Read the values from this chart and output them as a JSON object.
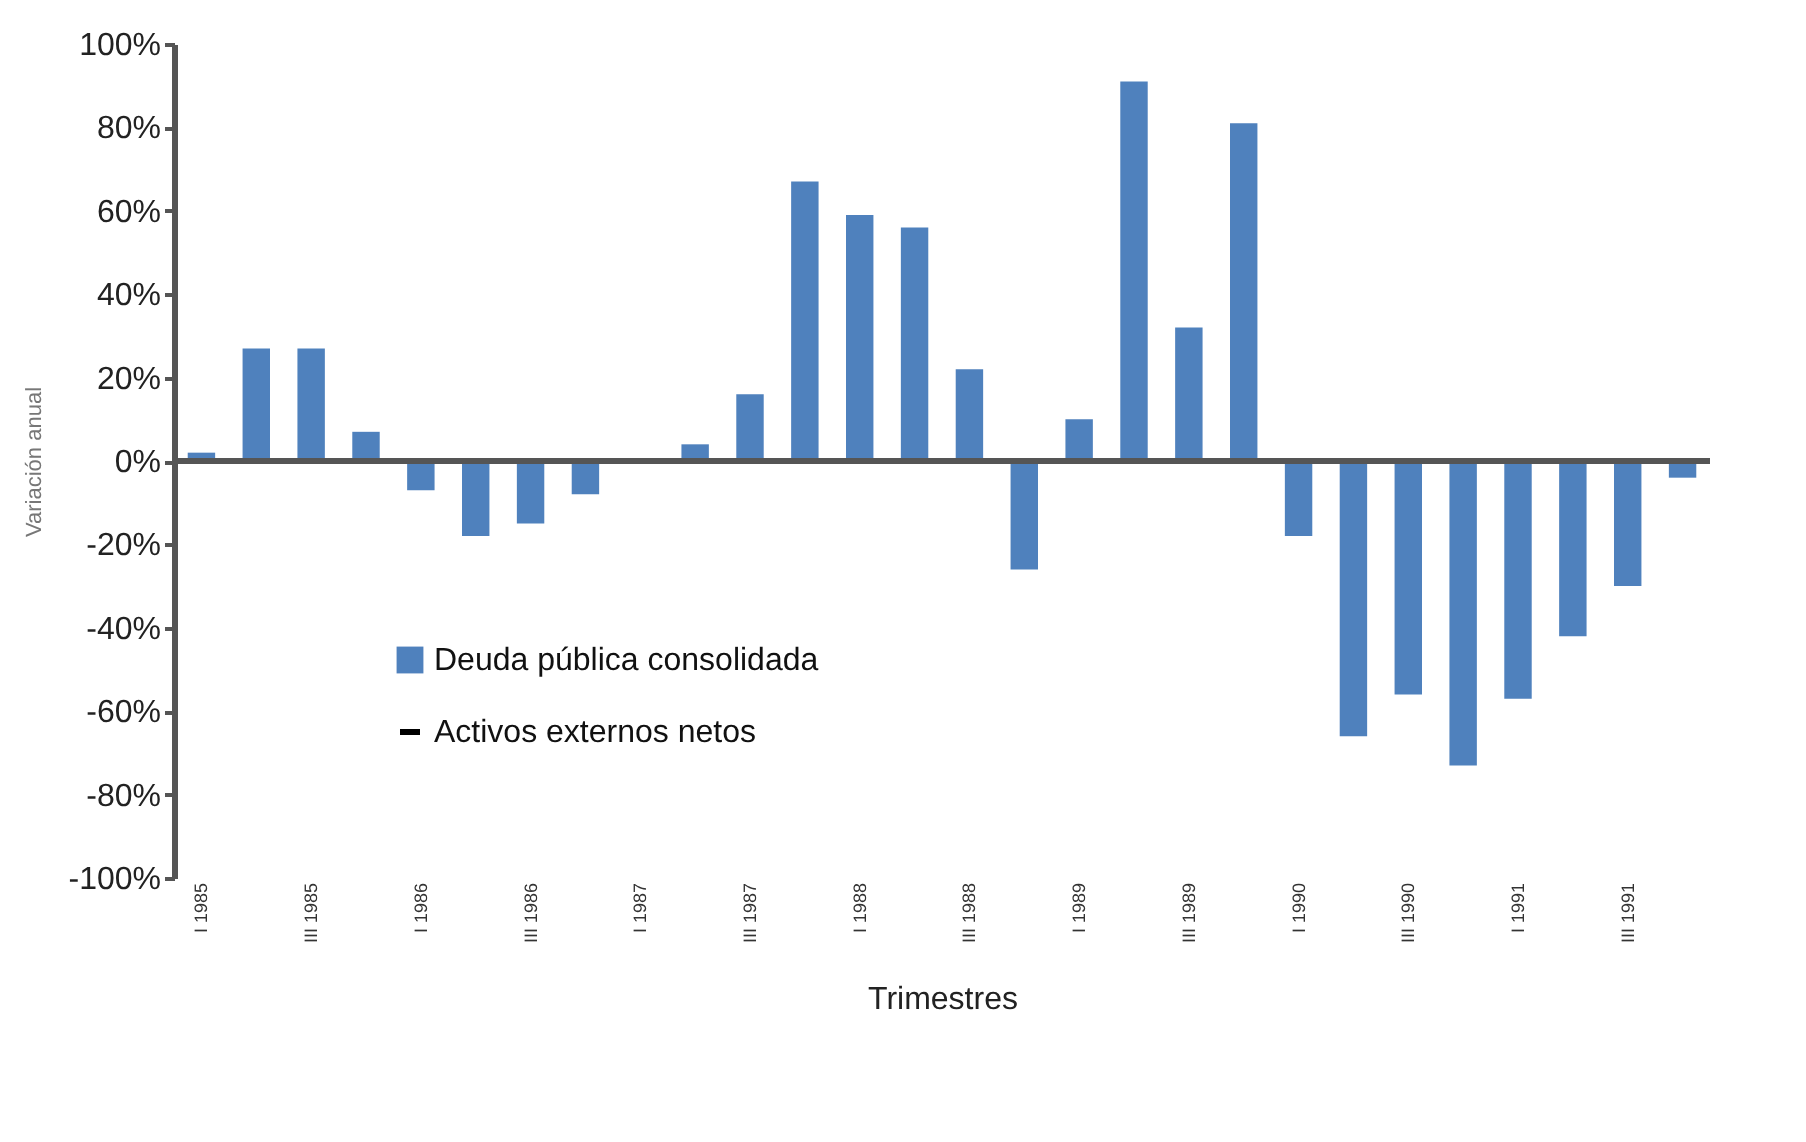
{
  "chart_data": {
    "type": "bar",
    "xlabel": "Trimestres",
    "ylabel": "Variación anual",
    "categories": [
      "I 1985",
      null,
      "III 1985",
      null,
      "I 1986",
      null,
      "III 1986",
      null,
      "I 1987",
      null,
      "III 1987",
      null,
      "I 1988",
      null,
      "III 1988",
      null,
      "I 1989",
      null,
      "III 1989",
      null,
      "I 1990",
      null,
      "III 1990",
      null,
      "I 1991",
      null,
      "III 1991",
      null
    ],
    "series": [
      {
        "name": "Deuda pública consolidada",
        "color": "#4f81bd",
        "values": [
          2,
          27,
          27,
          7,
          -7,
          -18,
          -15,
          -8,
          0,
          4,
          16,
          67,
          59,
          56,
          22,
          -26,
          10,
          91,
          32,
          81,
          -18,
          -66,
          -56,
          -73,
          -57,
          -42,
          -30,
          -4
        ]
      },
      {
        "name": "Activos externos netos",
        "type": "line",
        "color": "#000000",
        "values": [
          null,
          null,
          null,
          null,
          null,
          null,
          null,
          null,
          null,
          null,
          null,
          null,
          null,
          null,
          null,
          null,
          null,
          null,
          null,
          null,
          null,
          null,
          null,
          null,
          null,
          null,
          null,
          null
        ]
      }
    ],
    "ylim": [
      -100,
      100
    ],
    "yticks": [
      {
        "value": -100,
        "label": "-100%"
      },
      {
        "value": -80,
        "label": "-80%"
      },
      {
        "value": -60,
        "label": "-60%"
      },
      {
        "value": -40,
        "label": "-40%"
      },
      {
        "value": -20,
        "label": "-20%"
      },
      {
        "value": 0,
        "label": "0%"
      },
      {
        "value": 20,
        "label": "20%"
      },
      {
        "value": 40,
        "label": "40%"
      },
      {
        "value": 60,
        "label": "60%"
      },
      {
        "value": 80,
        "label": "80%"
      },
      {
        "value": 100,
        "label": "100%"
      }
    ],
    "ref_lines": [
      {
        "axis": "y",
        "value": 0,
        "color": "#555555"
      }
    ],
    "grid": false,
    "legend": "bottom left"
  }
}
